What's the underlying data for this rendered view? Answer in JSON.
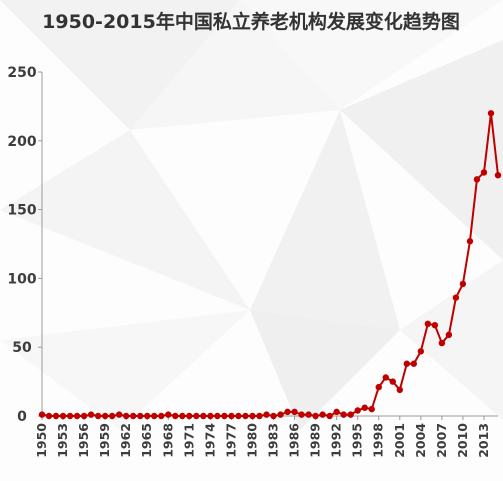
{
  "chart_data": {
    "type": "line",
    "title": "1950-2015年中国私立养老机构发展变化趋势图",
    "xlabel": "",
    "ylabel": "",
    "x": [
      1950,
      1951,
      1952,
      1953,
      1954,
      1955,
      1956,
      1957,
      1958,
      1959,
      1960,
      1961,
      1962,
      1963,
      1964,
      1965,
      1966,
      1967,
      1968,
      1969,
      1970,
      1971,
      1972,
      1973,
      1974,
      1975,
      1976,
      1977,
      1978,
      1979,
      1980,
      1981,
      1982,
      1983,
      1984,
      1985,
      1986,
      1987,
      1988,
      1989,
      1990,
      1991,
      1992,
      1993,
      1994,
      1995,
      1996,
      1997,
      1998,
      1999,
      2000,
      2001,
      2002,
      2003,
      2004,
      2005,
      2006,
      2007,
      2008,
      2009,
      2010,
      2011,
      2012,
      2013,
      2014,
      2015
    ],
    "y": [
      1,
      0,
      0,
      0,
      0,
      0,
      0,
      1,
      0,
      0,
      0,
      1,
      0,
      0,
      0,
      0,
      0,
      0,
      1,
      0,
      0,
      0,
      0,
      0,
      0,
      0,
      0,
      0,
      0,
      0,
      0,
      0,
      1,
      0,
      1,
      3,
      3,
      1,
      1,
      0,
      1,
      0,
      3,
      1,
      1,
      4,
      6,
      5,
      21,
      28,
      25,
      19,
      38,
      38,
      47,
      67,
      66,
      53,
      59,
      86,
      96,
      127,
      172,
      177,
      220,
      175
    ],
    "x_tick_labels": [
      "1950",
      "1953",
      "1956",
      "1959",
      "1962",
      "1965",
      "1968",
      "1971",
      "1974",
      "1977",
      "1980",
      "1983",
      "1986",
      "1989",
      "1992",
      "1995",
      "1998",
      "2001",
      "2004",
      "2007",
      "2010",
      "2013"
    ],
    "y_tick_labels": [
      "0",
      "50",
      "100",
      "150",
      "200",
      "250"
    ],
    "xlim": [
      1950,
      2015
    ],
    "ylim": [
      0,
      250
    ],
    "grid": false,
    "legend": "none",
    "series_color": "#c00000"
  }
}
